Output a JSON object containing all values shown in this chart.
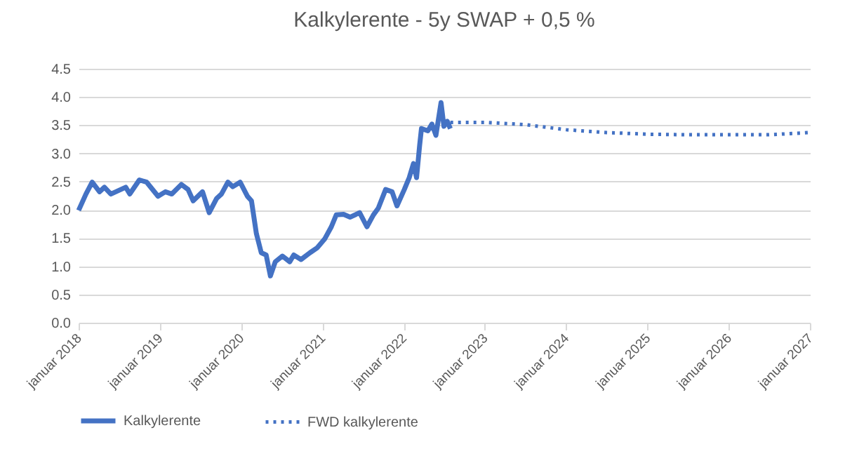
{
  "chart_data": {
    "type": "line",
    "title": "Kalkylerente - 5y SWAP + 0,5 %",
    "xlim": [
      "2018-01-01",
      "2027-01-01"
    ],
    "xticks": [
      {
        "value": "2018-01-01",
        "label": "januar 2018"
      },
      {
        "value": "2019-01-01",
        "label": "januar 2019"
      },
      {
        "value": "2020-01-01",
        "label": "januar 2020"
      },
      {
        "value": "2021-01-01",
        "label": "januar 2021"
      },
      {
        "value": "2022-01-01",
        "label": "januar 2022"
      },
      {
        "value": "2023-01-01",
        "label": "januar 2023"
      },
      {
        "value": "2024-01-01",
        "label": "januar 2024"
      },
      {
        "value": "2025-01-01",
        "label": "januar 2025"
      },
      {
        "value": "2026-01-01",
        "label": "januar 2026"
      },
      {
        "value": "2027-01-01",
        "label": "januar 2027"
      }
    ],
    "ylim": [
      0,
      4.5
    ],
    "yticks": [
      {
        "value": 0,
        "label": "0.0"
      },
      {
        "value": 0.5,
        "label": "0.5"
      },
      {
        "value": 1,
        "label": "1.0"
      },
      {
        "value": 1.5,
        "label": "1.5"
      },
      {
        "value": 2,
        "label": "2.0"
      },
      {
        "value": 2.5,
        "label": "2.5"
      },
      {
        "value": 3,
        "label": "3.0"
      },
      {
        "value": 3.5,
        "label": "3.5"
      },
      {
        "value": 4,
        "label": "4.0"
      },
      {
        "value": 4.5,
        "label": "4.5"
      }
    ],
    "grid": "y",
    "legend": "bottom",
    "series": [
      {
        "name": "Kalkylerente",
        "color": "#4472c4",
        "line_style": "solid",
        "x": [
          "2018-01-01",
          "2018-02-03",
          "2018-03-03",
          "2018-04-05",
          "2018-04-27",
          "2018-05-26",
          "2018-08-01",
          "2018-08-19",
          "2018-10-01",
          "2018-11-03",
          "2018-12-24",
          "2019-01-26",
          "2019-02-24",
          "2019-04-08",
          "2019-05-08",
          "2019-05-31",
          "2019-07-12",
          "2019-08-11",
          "2019-09-13",
          "2019-10-05",
          "2019-11-03",
          "2019-11-25",
          "2019-12-28",
          "2020-01-30",
          "2020-02-17",
          "2020-03-10",
          "2020-04-01",
          "2020-04-23",
          "2020-05-12",
          "2020-06-03",
          "2020-07-05",
          "2020-08-07",
          "2020-08-25",
          "2020-09-27",
          "2020-11-06",
          "2020-12-09",
          "2021-01-12",
          "2021-02-10",
          "2021-03-04",
          "2021-04-06",
          "2021-05-05",
          "2021-06-17",
          "2021-07-20",
          "2021-08-18",
          "2021-09-09",
          "2021-10-12",
          "2021-11-10",
          "2021-12-02",
          "2022-01-04",
          "2022-01-26",
          "2022-02-14",
          "2022-02-28",
          "2022-03-14",
          "2022-03-22",
          "2022-04-20",
          "2022-05-08",
          "2022-05-26",
          "2022-06-18",
          "2022-07-01",
          "2022-07-16",
          "2022-07-30"
        ],
        "values": [
          1.99,
          2.28,
          2.49,
          2.32,
          2.4,
          2.28,
          2.4,
          2.28,
          2.53,
          2.49,
          2.24,
          2.32,
          2.28,
          2.45,
          2.36,
          2.16,
          2.32,
          1.95,
          2.2,
          2.28,
          2.49,
          2.41,
          2.49,
          2.24,
          2.16,
          1.58,
          1.24,
          1.2,
          0.83,
          1.08,
          1.18,
          1.08,
          1.2,
          1.12,
          1.24,
          1.33,
          1.49,
          1.7,
          1.91,
          1.92,
          1.87,
          1.95,
          1.7,
          1.91,
          2.03,
          2.36,
          2.32,
          2.07,
          2.36,
          2.57,
          2.82,
          2.57,
          3.15,
          3.44,
          3.4,
          3.52,
          3.32,
          3.9,
          3.48,
          3.57,
          3.44
        ]
      },
      {
        "name": "FWD kalkylerente",
        "color": "#4472c4",
        "line_style": "dotted",
        "x": [
          "2022-07-30",
          "2023-01-01",
          "2023-07-01",
          "2024-01-01",
          "2024-07-01",
          "2025-01-01",
          "2025-07-01",
          "2026-01-01",
          "2026-07-01",
          "2027-01-01"
        ],
        "values": [
          3.55,
          3.55,
          3.51,
          3.42,
          3.37,
          3.34,
          3.33,
          3.33,
          3.33,
          3.37
        ]
      }
    ]
  }
}
